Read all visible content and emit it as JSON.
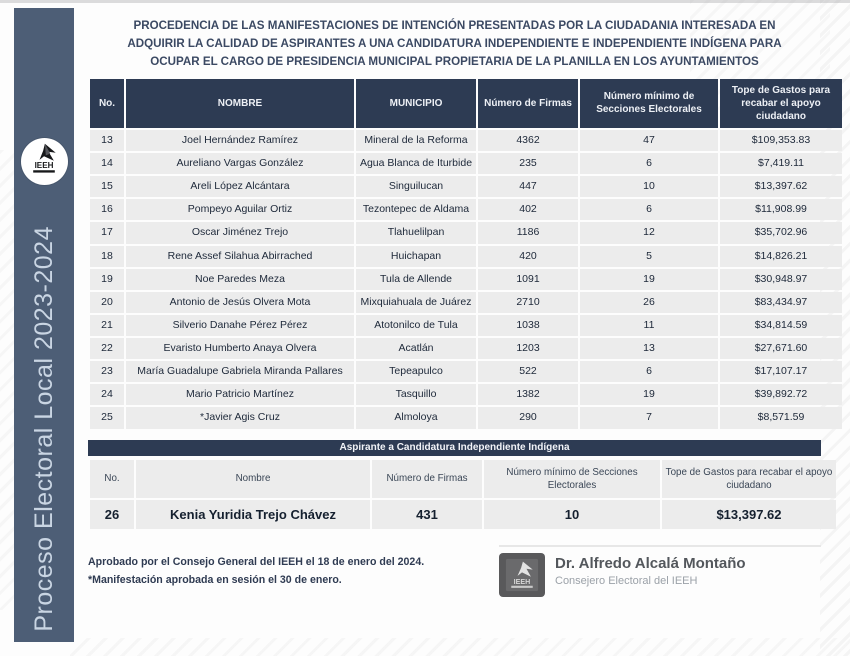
{
  "sidebar": {
    "label": "Proceso Electoral Local 2023-2024",
    "logo_text": "IEEH"
  },
  "title": {
    "lines": {
      "0": "PROCEDENCIA DE LAS MANIFESTACIONES DE INTENCIÓN PRESENTADAS POR LA CIUDADANIA INTERESADA EN",
      "1": "ADQUIRIR LA CALIDAD DE ASPIRANTES A UNA CANDIDATURA INDEPENDIENTE E INDEPENDIENTE INDÍGENA PARA",
      "2": "OCUPAR EL CARGO DE PRESIDENCIA MUNICIPAL PROPIETARIA DE LA PLANILLA EN LOS AYUNTAMIENTOS"
    }
  },
  "main_table": {
    "headers": [
      "No.",
      "NOMBRE",
      "MUNICIPIO",
      "Número de Firmas",
      "Número mínimo de Secciones Electorales",
      "Tope de Gastos para recabar el apoyo ciudadano"
    ],
    "rows": [
      [
        "13",
        "Joel Hernández Ramírez",
        "Mineral de la Reforma",
        "4362",
        "47",
        "$109,353.83"
      ],
      [
        "14",
        "Aureliano Vargas González",
        "Agua Blanca de Iturbide",
        "235",
        "6",
        "$7,419.11"
      ],
      [
        "15",
        "Areli López Alcántara",
        "Singuilucan",
        "447",
        "10",
        "$13,397.62"
      ],
      [
        "16",
        "Pompeyo Aguilar Ortiz",
        "Tezontepec de Aldama",
        "402",
        "6",
        "$11,908.99"
      ],
      [
        "17",
        "Oscar Jiménez Trejo",
        "Tlahuelilpan",
        "1186",
        "12",
        "$35,702.96"
      ],
      [
        "18",
        "Rene Assef Silahua Abirrached",
        "Huichapan",
        "420",
        "5",
        "$14,826.21"
      ],
      [
        "19",
        "Noe Paredes Meza",
        "Tula de Allende",
        "1091",
        "19",
        "$30,948.97"
      ],
      [
        "20",
        "Antonio de Jesús Olvera Mota",
        "Mixquiahuala de Juárez",
        "2710",
        "26",
        "$83,434.97"
      ],
      [
        "21",
        "Silverio Danahe Pérez Pérez",
        "Atotonilco de Tula",
        "1038",
        "11",
        "$34,814.59"
      ],
      [
        "22",
        "Evaristo Humberto Anaya Olvera",
        "Acatlán",
        "1203",
        "13",
        "$27,671.60"
      ],
      [
        "23",
        "María Guadalupe Gabriela Miranda Pallares",
        "Tepeapulco",
        "522",
        "6",
        "$17,107.17"
      ],
      [
        "24",
        "Mario Patricio Martínez",
        "Tasquillo",
        "1382",
        "19",
        "$39,892.72"
      ],
      [
        "25",
        "*Javier Agis Cruz",
        "Almoloya",
        "290",
        "7",
        "$8,571.59"
      ]
    ]
  },
  "indigenous_table": {
    "band_title": "Aspirante a Candidatura Independiente Indígena",
    "headers": [
      "No.",
      "Nombre",
      "Número de Firmas",
      "Número mínimo de Secciones Electorales",
      "Tope de Gastos para recabar el apoyo ciudadano"
    ],
    "rows": [
      [
        "26",
        "Kenia Yuridia Trejo Chávez",
        "431",
        "10",
        "$13,397.62"
      ]
    ]
  },
  "footer": {
    "note_line1": "Aprobado por el Consejo General del IEEH el 18 de enero del 2024.",
    "note_line2": "*Manifestación aprobada en sesión el 30 de enero.",
    "signatory_name": "Dr. Alfredo Alcalá Montaño",
    "signatory_title": "Consejero Electoral del IEEH",
    "logo_text": "IEEH"
  },
  "colors": {
    "sidebar_bg": "#4d5e76",
    "table_header_bg": "#2d3b53",
    "row_bg": "#ececec",
    "title_text": "#3b4963"
  }
}
